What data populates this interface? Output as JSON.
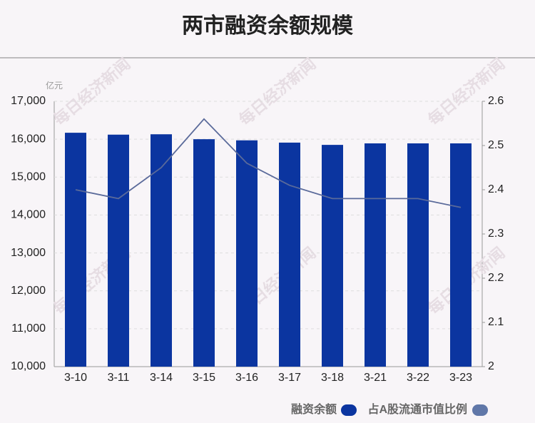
{
  "chart_data": {
    "type": "bar-line",
    "title": "两市融资余额规模",
    "unit": "亿元",
    "watermark": "每日经济新闻",
    "categories": [
      "3-10",
      "3-11",
      "3-14",
      "3-15",
      "3-16",
      "3-17",
      "3-18",
      "3-21",
      "3-22",
      "3-23"
    ],
    "series": [
      {
        "name": "融资余额",
        "color": "#0b35a0",
        "type": "bar",
        "values": [
          16170,
          16120,
          16130,
          16000,
          15970,
          15910,
          15850,
          15890,
          15890,
          15890
        ]
      },
      {
        "name": "占A股流通市值比例",
        "color": "#5a6a9a",
        "legend_color": "#6077a8",
        "type": "line",
        "axis": "y2",
        "values": [
          2.4,
          2.38,
          2.45,
          2.56,
          2.46,
          2.41,
          2.38,
          2.38,
          2.38,
          2.36
        ]
      }
    ],
    "ylim": [
      10000,
      17000
    ],
    "yticks": [
      {
        "value": 10000,
        "label": "10,000"
      },
      {
        "value": 11000,
        "label": "11,000"
      },
      {
        "value": 12000,
        "label": "12,000"
      },
      {
        "value": 13000,
        "label": "13,000"
      },
      {
        "value": 14000,
        "label": "14,000"
      },
      {
        "value": 15000,
        "label": "15,000"
      },
      {
        "value": 16000,
        "label": "16,000"
      },
      {
        "value": 17000,
        "label": "17,000"
      }
    ],
    "y2lim": [
      2,
      2.6
    ],
    "y2ticks": [
      2,
      2.1,
      2.2,
      2.3,
      2.4,
      2.5,
      2.6
    ],
    "grid": true
  }
}
